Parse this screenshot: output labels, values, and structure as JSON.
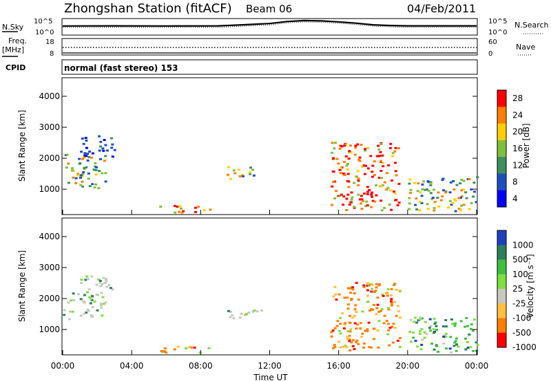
{
  "header": {
    "station": "Zhongshan Station (fitACF)",
    "beam": "Beam 06",
    "date": "04/Feb/2011"
  },
  "noise_panel": {
    "left_label": "N.Sky",
    "right_label": "N.Search",
    "left_ticks": [
      "10^5",
      "10^0"
    ],
    "right_ticks": [
      "10^5",
      "10^0"
    ],
    "curve": [
      [
        0,
        0.55
      ],
      [
        3,
        0.56
      ],
      [
        6,
        0.55
      ],
      [
        9,
        0.56
      ],
      [
        10,
        0.6
      ],
      [
        12,
        0.7
      ],
      [
        13,
        0.82
      ],
      [
        14,
        0.88
      ],
      [
        15,
        0.86
      ],
      [
        16,
        0.8
      ],
      [
        17,
        0.72
      ],
      [
        18,
        0.62
      ],
      [
        19,
        0.58
      ],
      [
        20,
        0.56
      ],
      [
        22,
        0.56
      ],
      [
        24,
        0.56
      ]
    ]
  },
  "freq_panel": {
    "left_label_1": "Freq.",
    "left_label_2": "[MHz]",
    "right_label": "Nave",
    "left_ticks": [
      "18",
      "8"
    ],
    "right_ticks": [
      "60",
      "0"
    ]
  },
  "cpid": {
    "label": "CPID",
    "value": "normal (fast stereo) 153"
  },
  "x_axis": {
    "label": "Time UT",
    "ticks": [
      "00:00",
      "04:00",
      "08:00",
      "12:00",
      "16:00",
      "20:00",
      "00:00"
    ]
  },
  "chart_data": [
    {
      "type": "heatmap",
      "title": "",
      "xlabel": "Time UT",
      "ylabel": "Slant Range [km]",
      "xlim": [
        0,
        24
      ],
      "ylim": [
        180,
        4600
      ],
      "y_ticks": [
        "1000",
        "2000",
        "3000",
        "4000"
      ],
      "colorbar": {
        "label": "Power [dB]",
        "ticks": [
          "28",
          "24",
          "20",
          "16",
          "12",
          "8",
          "4"
        ],
        "colors": [
          "#ff0000",
          "#ff8000",
          "#ffd000",
          "#7fbf3f",
          "#3f8f5f",
          "#1f4fbf",
          "#0000ff"
        ]
      },
      "regions": [
        {
          "t0": 0.0,
          "t1": 2.5,
          "r0": 1000,
          "r1": 2200,
          "level": "mixed"
        },
        {
          "t0": 1.0,
          "t1": 3.0,
          "r0": 2000,
          "r1": 2700,
          "level": "low"
        },
        {
          "t0": 5.5,
          "t1": 8.5,
          "r0": 200,
          "r1": 450,
          "level": "high"
        },
        {
          "t0": 9.5,
          "t1": 11.5,
          "r0": 1300,
          "r1": 1700,
          "level": "mixed"
        },
        {
          "t0": 15.5,
          "t1": 19.5,
          "r0": 300,
          "r1": 2500,
          "level": "high"
        },
        {
          "t0": 20.0,
          "t1": 24.0,
          "r0": 250,
          "r1": 1400,
          "level": "mixed"
        }
      ]
    },
    {
      "type": "heatmap",
      "title": "",
      "xlabel": "Time UT",
      "ylabel": "Slant Range [km]",
      "xlim": [
        0,
        24
      ],
      "ylim": [
        180,
        4600
      ],
      "y_ticks": [
        "1000",
        "2000",
        "3000",
        "4000"
      ],
      "colorbar": {
        "label": "Velocity [m s⁻¹]",
        "ticks": [
          "1000",
          "500",
          "100",
          "25",
          "-25",
          "-100",
          "-500",
          "-1000"
        ],
        "colors": [
          "#2040c0",
          "#2f7f5f",
          "#3fbf3f",
          "#7fdf3f",
          "#c8c8c0",
          "#ffc040",
          "#ff8000",
          "#ff0000"
        ]
      },
      "regions": [
        {
          "t0": 0.0,
          "t1": 2.5,
          "r0": 1300,
          "r1": 2200,
          "level": "ground"
        },
        {
          "t0": 1.0,
          "t1": 3.0,
          "r0": 2000,
          "r1": 2700,
          "level": "ground"
        },
        {
          "t0": 5.5,
          "t1": 8.5,
          "r0": 200,
          "r1": 450,
          "level": "negative"
        },
        {
          "t0": 9.5,
          "t1": 11.5,
          "r0": 1300,
          "r1": 1700,
          "level": "ground"
        },
        {
          "t0": 15.5,
          "t1": 19.5,
          "r0": 300,
          "r1": 2500,
          "level": "negative"
        },
        {
          "t0": 20.0,
          "t1": 24.0,
          "r0": 250,
          "r1": 1400,
          "level": "positive"
        }
      ]
    }
  ]
}
